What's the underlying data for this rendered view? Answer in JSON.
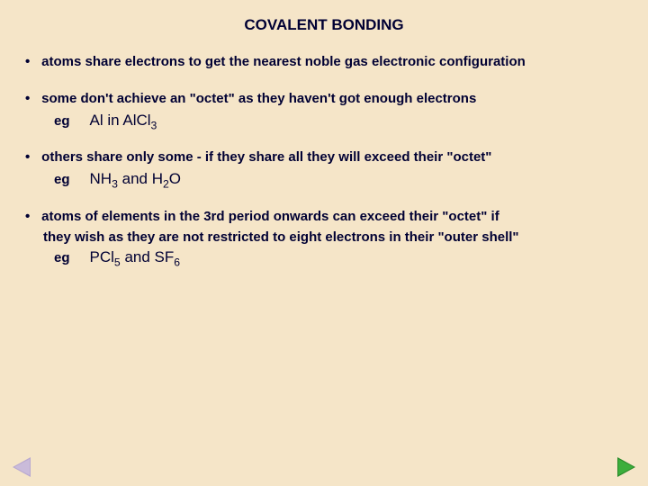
{
  "slide": {
    "background_color": "#f5e5c8",
    "title_color": "#000033",
    "text_color": "#000033",
    "title": "COVALENT BONDING",
    "title_fontsize": 17,
    "body_fontsize": 15,
    "eg_fontsize": 17,
    "bullets": [
      {
        "text": "atoms share electrons to get the nearest noble gas electronic configuration",
        "eg": null
      },
      {
        "text": "some don't achieve an \"octet\" as they haven't got enough electrons",
        "eg": {
          "label": "eg",
          "formula_html": "Al in AlCl<span class=\"sub\">3</span>"
        }
      },
      {
        "text": "others share only some  - if they share all they will exceed their \"octet\"",
        "eg": {
          "label": "eg",
          "formula_html": "NH<span class=\"sub\">3</span> and H<span class=\"sub\">2</span>O"
        }
      },
      {
        "text": "atoms of elements in the 3rd period onwards can exceed their \"octet\" if",
        "cont": "they wish as they are not restricted to eight electrons in their \"outer shell\"",
        "eg": {
          "label": "eg",
          "formula_html": "PCl<span class=\"sub\">5</span> and SF<span class=\"sub\">6</span>"
        }
      }
    ],
    "nav": {
      "prev_color": "#b8a8d0",
      "next_color": "#2a8a2a"
    }
  }
}
